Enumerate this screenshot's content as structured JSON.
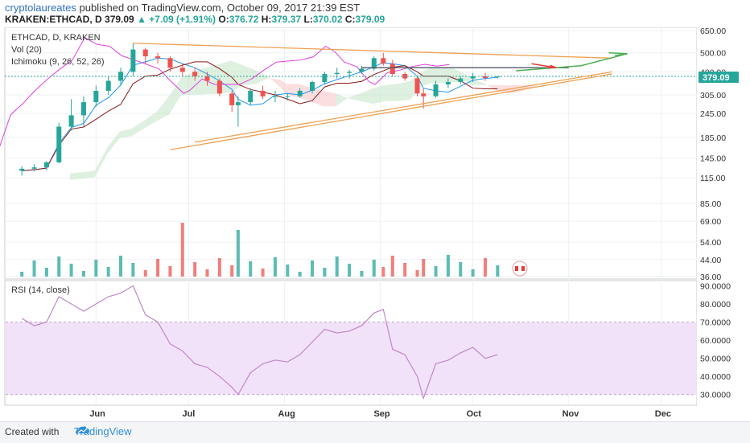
{
  "header": {
    "author": "cryptolaureates",
    "published_text": "published on TradingView.com, October 09, 2017 21:39 EST",
    "symbol": "KRAKEN:ETHCAD, D",
    "last": "379.09",
    "change": "+7.09 (+1.91%)",
    "o_label": "O:",
    "o_value": "376.72",
    "h_label": "H:",
    "h_value": "379.37",
    "l_label": "L:",
    "l_value": "370.02",
    "c_label": "C:",
    "c_value": "379.09"
  },
  "legend": {
    "title": "ETHCAD, D, KRAKEN",
    "vol": "Vol (20)",
    "ichimoku": "Ichimoku (9, 26, 52, 26)",
    "rsi": "RSI (14, close)"
  },
  "price_badge": "379.09",
  "price_axis_labels": [
    "650.00",
    "500.00",
    "400.00",
    "305.00",
    "245.00",
    "185.00",
    "145.00",
    "115.00",
    "85.00",
    "69.00",
    "54.00",
    "44.00",
    "36.00"
  ],
  "rsi_axis_labels": [
    "90.0000",
    "80.0000",
    "70.0000",
    "60.0000",
    "50.0000",
    "40.0000",
    "30.0000"
  ],
  "x_axis_labels": [
    "Jun",
    "Jul",
    "Aug",
    "Sep",
    "Oct",
    "Nov",
    "Dec"
  ],
  "footer": {
    "created_with": "Created with",
    "brand": "TradingView"
  },
  "colors": {
    "up": "#26a69a",
    "down": "#ef5350",
    "trendline": "#f0a050",
    "rsi_line": "#c087c9",
    "rsi_band": "#f1e2fa",
    "lagging": "#e040e0",
    "conversion": "#2196f3",
    "base": "#8b1a1a",
    "green_arrow": "#4caf50",
    "red_arrow": "#e53935"
  },
  "chart_data": {
    "type": "candlestick",
    "price_scale": "log",
    "ylim": [
      36,
      650
    ],
    "rsi_ylim": [
      25,
      92
    ],
    "rsi_band": [
      30,
      70
    ],
    "points": [
      {
        "date": "2017-05-08",
        "o": 125,
        "h": 132,
        "l": 118,
        "c": 128,
        "rsi": 72
      },
      {
        "date": "2017-05-12",
        "o": 128,
        "h": 135,
        "l": 124,
        "c": 130,
        "rsi": 68
      },
      {
        "date": "2017-05-16",
        "o": 130,
        "h": 140,
        "l": 126,
        "c": 138,
        "rsi": 70
      },
      {
        "date": "2017-05-20",
        "o": 138,
        "h": 220,
        "l": 136,
        "c": 210,
        "rsi": 84
      },
      {
        "date": "2017-05-24",
        "o": 210,
        "h": 290,
        "l": 200,
        "c": 240,
        "rsi": 80
      },
      {
        "date": "2017-05-28",
        "o": 240,
        "h": 300,
        "l": 210,
        "c": 280,
        "rsi": 76
      },
      {
        "date": "2017-06-01",
        "o": 280,
        "h": 340,
        "l": 265,
        "c": 320,
        "rsi": 80
      },
      {
        "date": "2017-06-05",
        "o": 320,
        "h": 380,
        "l": 305,
        "c": 360,
        "rsi": 84
      },
      {
        "date": "2017-06-09",
        "o": 360,
        "h": 420,
        "l": 340,
        "c": 400,
        "rsi": 86
      },
      {
        "date": "2017-06-13",
        "o": 400,
        "h": 560,
        "l": 380,
        "c": 520,
        "rsi": 90
      },
      {
        "date": "2017-06-17",
        "o": 520,
        "h": 530,
        "l": 440,
        "c": 480,
        "rsi": 74
      },
      {
        "date": "2017-06-21",
        "o": 480,
        "h": 500,
        "l": 440,
        "c": 470,
        "rsi": 70
      },
      {
        "date": "2017-06-25",
        "o": 470,
        "h": 480,
        "l": 400,
        "c": 420,
        "rsi": 58
      },
      {
        "date": "2017-06-29",
        "o": 420,
        "h": 440,
        "l": 380,
        "c": 400,
        "rsi": 54
      },
      {
        "date": "2017-07-03",
        "o": 400,
        "h": 420,
        "l": 360,
        "c": 380,
        "rsi": 47
      },
      {
        "date": "2017-07-07",
        "o": 380,
        "h": 400,
        "l": 340,
        "c": 360,
        "rsi": 45
      },
      {
        "date": "2017-07-11",
        "o": 360,
        "h": 370,
        "l": 300,
        "c": 310,
        "rsi": 40
      },
      {
        "date": "2017-07-15",
        "o": 310,
        "h": 320,
        "l": 250,
        "c": 270,
        "rsi": 34
      },
      {
        "date": "2017-07-17",
        "o": 270,
        "h": 300,
        "l": 210,
        "c": 280,
        "rsi": 30
      },
      {
        "date": "2017-07-21",
        "o": 280,
        "h": 330,
        "l": 270,
        "c": 320,
        "rsi": 42
      },
      {
        "date": "2017-07-25",
        "o": 320,
        "h": 340,
        "l": 290,
        "c": 300,
        "rsi": 47
      },
      {
        "date": "2017-07-29",
        "o": 300,
        "h": 320,
        "l": 280,
        "c": 300,
        "rsi": 49
      },
      {
        "date": "2017-08-02",
        "o": 300,
        "h": 310,
        "l": 285,
        "c": 300,
        "rsi": 48
      },
      {
        "date": "2017-08-06",
        "o": 300,
        "h": 330,
        "l": 295,
        "c": 320,
        "rsi": 52
      },
      {
        "date": "2017-08-10",
        "o": 320,
        "h": 360,
        "l": 310,
        "c": 355,
        "rsi": 59
      },
      {
        "date": "2017-08-14",
        "o": 355,
        "h": 400,
        "l": 345,
        "c": 390,
        "rsi": 66
      },
      {
        "date": "2017-08-18",
        "o": 390,
        "h": 420,
        "l": 370,
        "c": 395,
        "rsi": 64
      },
      {
        "date": "2017-08-22",
        "o": 395,
        "h": 410,
        "l": 370,
        "c": 400,
        "rsi": 65
      },
      {
        "date": "2017-08-26",
        "o": 400,
        "h": 430,
        "l": 390,
        "c": 415,
        "rsi": 68
      },
      {
        "date": "2017-08-30",
        "o": 415,
        "h": 480,
        "l": 405,
        "c": 470,
        "rsi": 75
      },
      {
        "date": "2017-09-02",
        "o": 470,
        "h": 500,
        "l": 430,
        "c": 440,
        "rsi": 77
      },
      {
        "date": "2017-09-05",
        "o": 440,
        "h": 460,
        "l": 380,
        "c": 390,
        "rsi": 55
      },
      {
        "date": "2017-09-09",
        "o": 390,
        "h": 400,
        "l": 360,
        "c": 370,
        "rsi": 52
      },
      {
        "date": "2017-09-13",
        "o": 370,
        "h": 380,
        "l": 300,
        "c": 310,
        "rsi": 40
      },
      {
        "date": "2017-09-15",
        "o": 310,
        "h": 330,
        "l": 260,
        "c": 300,
        "rsi": 28
      },
      {
        "date": "2017-09-19",
        "o": 300,
        "h": 360,
        "l": 295,
        "c": 345,
        "rsi": 47
      },
      {
        "date": "2017-09-23",
        "o": 345,
        "h": 370,
        "l": 330,
        "c": 355,
        "rsi": 49
      },
      {
        "date": "2017-09-27",
        "o": 355,
        "h": 380,
        "l": 345,
        "c": 370,
        "rsi": 53
      },
      {
        "date": "2017-10-01",
        "o": 370,
        "h": 395,
        "l": 355,
        "c": 380,
        "rsi": 56
      },
      {
        "date": "2017-10-05",
        "o": 380,
        "h": 395,
        "l": 360,
        "c": 372,
        "rsi": 50
      },
      {
        "date": "2017-10-09",
        "o": 376.72,
        "h": 379.37,
        "l": 370.02,
        "c": 379.09,
        "rsi": 52
      }
    ],
    "trendlines": [
      {
        "name": "upper-resistance",
        "from": [
          "2017-06-13",
          560
        ],
        "to": [
          "2017-11-15",
          470
        ]
      },
      {
        "name": "lower-support",
        "from": [
          "2017-06-25",
          160
        ],
        "to": [
          "2017-11-15",
          390
        ]
      },
      {
        "name": "inner-support",
        "from": [
          "2017-07-03",
          175
        ],
        "to": [
          "2017-11-15",
          400
        ]
      },
      {
        "name": "horizontal",
        "from": [
          "2017-08-26",
          420
        ],
        "to": [
          "2017-11-01",
          420
        ]
      }
    ]
  }
}
